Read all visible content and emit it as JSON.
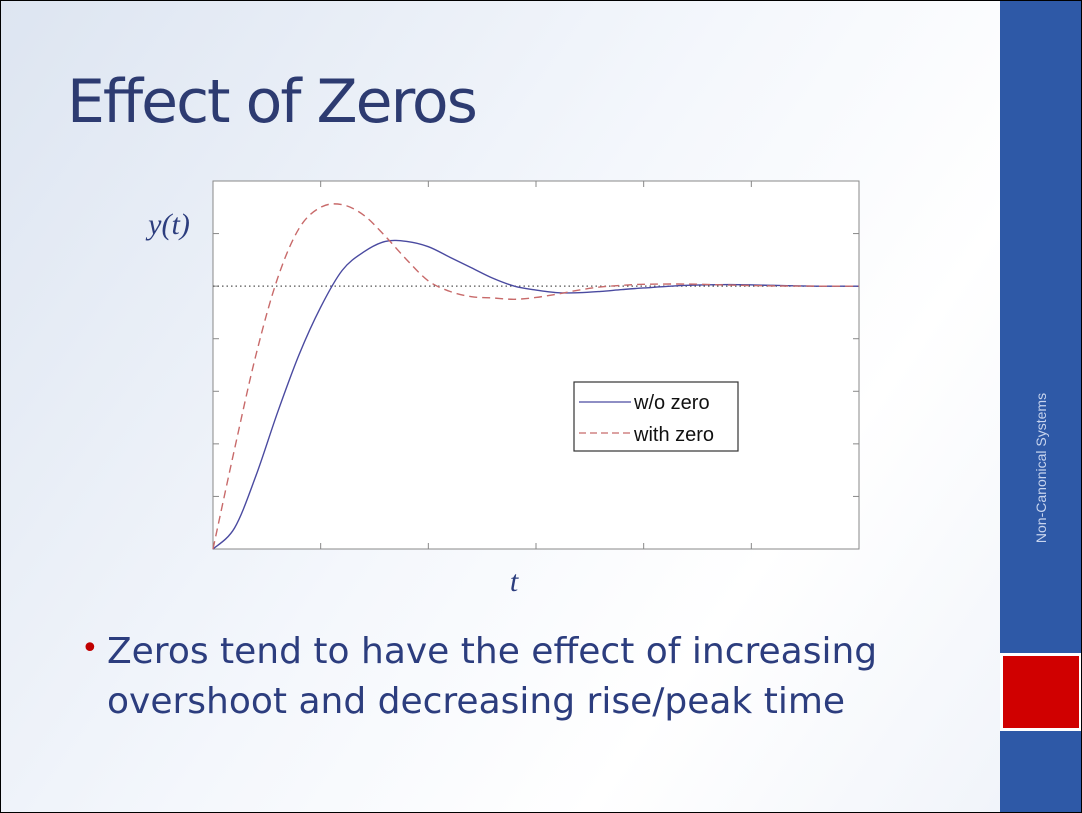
{
  "slide": {
    "title": "Effect of Zeros",
    "bullets": [
      "Zeros tend to have the effect of increasing overshoot and decreasing rise/peak time"
    ],
    "sidebar_label": "Non-Canonical Systems",
    "colors": {
      "title": "#2d3b71",
      "bullet_dot": "#c00000",
      "sidebar": "#2e59a7",
      "sidebar_block": "#d00000"
    }
  },
  "chart_data": {
    "type": "line",
    "xlabel": "t",
    "ylabel": "y(t)",
    "xlim": [
      0,
      6
    ],
    "ylim": [
      0,
      1.4
    ],
    "steady_state": 1.0,
    "reference_line": "dotted",
    "legend_position": "bottom-right",
    "series": [
      {
        "name": "w/o zero",
        "color": "#4a4aa0",
        "style": "solid",
        "x": [
          0,
          0.2,
          0.4,
          0.6,
          0.8,
          1.0,
          1.2,
          1.4,
          1.6,
          1.8,
          2.0,
          2.2,
          2.4,
          2.6,
          2.8,
          3.0,
          3.2,
          3.4,
          3.6,
          3.8,
          4.0,
          4.4,
          4.8,
          5.2,
          5.6,
          6.0
        ],
        "values": [
          0,
          0.08,
          0.28,
          0.52,
          0.74,
          0.92,
          1.06,
          1.13,
          1.17,
          1.17,
          1.15,
          1.11,
          1.07,
          1.03,
          1.0,
          0.985,
          0.975,
          0.975,
          0.98,
          0.987,
          0.993,
          1.003,
          1.006,
          1.003,
          1.0,
          1.0
        ]
      },
      {
        "name": "with zero",
        "color": "#c86a6a",
        "style": "dashed",
        "x": [
          0,
          0.2,
          0.4,
          0.6,
          0.8,
          1.0,
          1.2,
          1.4,
          1.6,
          1.8,
          2.0,
          2.2,
          2.4,
          2.6,
          2.8,
          3.0,
          3.2,
          3.4,
          3.6,
          3.8,
          4.0,
          4.4,
          4.8,
          5.2,
          5.6,
          6.0
        ],
        "values": [
          0,
          0.38,
          0.74,
          1.03,
          1.22,
          1.3,
          1.31,
          1.27,
          1.19,
          1.1,
          1.02,
          0.98,
          0.96,
          0.955,
          0.95,
          0.957,
          0.97,
          0.985,
          0.997,
          1.003,
          1.007,
          1.008,
          1.004,
          1.001,
          1.0,
          1.0
        ]
      }
    ]
  }
}
